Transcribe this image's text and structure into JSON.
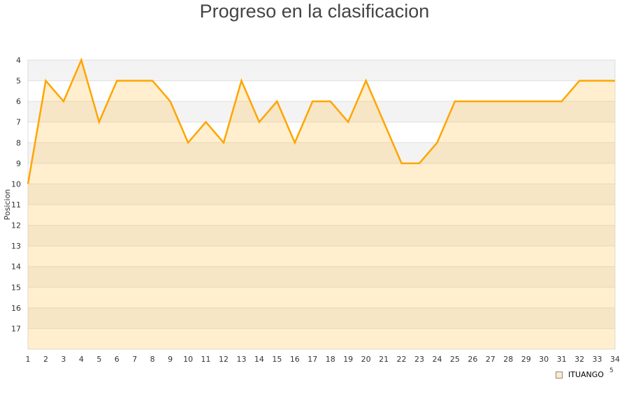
{
  "chart_data": {
    "type": "area",
    "title": "Progreso en la clasificacion",
    "xlabel": "",
    "ylabel": "Posicion",
    "x": [
      1,
      2,
      3,
      4,
      5,
      6,
      7,
      8,
      9,
      10,
      11,
      12,
      13,
      14,
      15,
      16,
      17,
      18,
      19,
      20,
      21,
      22,
      23,
      24,
      25,
      26,
      27,
      28,
      29,
      30,
      31,
      32,
      33,
      34
    ],
    "ylim": [
      4,
      18
    ],
    "y_inverted": true,
    "y_ticks": [
      4,
      5,
      6,
      7,
      8,
      9,
      10,
      11,
      12,
      13,
      14,
      15,
      16,
      17
    ],
    "series": [
      {
        "name": "ITUANGO",
        "values": [
          10,
          5,
          6,
          4,
          7,
          5,
          5,
          5,
          6,
          8,
          7,
          8,
          5,
          7,
          6,
          8,
          6,
          6,
          7,
          5,
          7,
          9,
          9,
          8,
          6,
          6,
          6,
          6,
          6,
          6,
          6,
          5,
          5,
          5
        ]
      }
    ],
    "legend": "bottom-right",
    "legend_extra_text": "5",
    "colors": {
      "line": "#ffa500",
      "fill": "#ffecc8",
      "band": "#f3f3f3",
      "grid": "#e0e0e0"
    }
  }
}
